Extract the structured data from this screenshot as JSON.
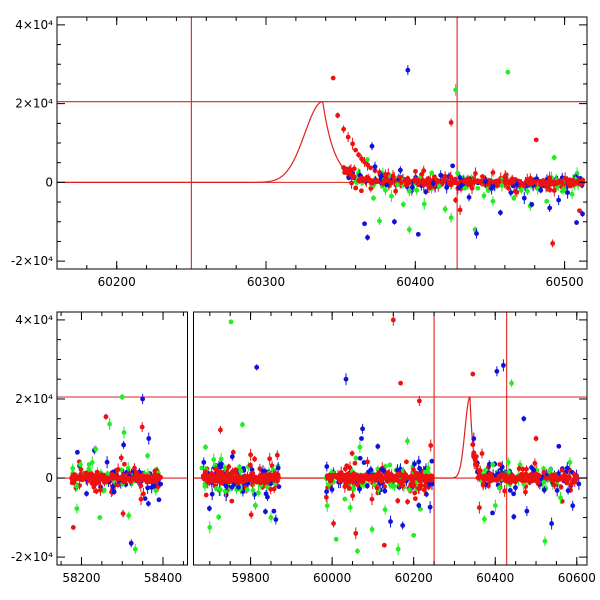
{
  "colors": {
    "red": "#ee1111",
    "green": "#22ee22",
    "blue": "#1111dd",
    "frame": "#000000"
  },
  "chart_data": [
    {
      "type": "scatter",
      "grid": false,
      "xlim": [
        60160,
        60515
      ],
      "ylim": [
        -22000,
        42000
      ],
      "yticks": [
        {
          "value": -20000,
          "label": "-2×10⁴"
        },
        {
          "value": 0,
          "label": "0"
        },
        {
          "value": 20000,
          "label": "2×10⁴"
        },
        {
          "value": 40000,
          "label": "4×10⁴"
        }
      ],
      "xticks": [
        {
          "value": 60200,
          "label": "60200"
        },
        {
          "value": 60300,
          "label": "60300"
        },
        {
          "value": 60400,
          "label": "60400"
        },
        {
          "value": 60500,
          "label": "60500"
        }
      ],
      "vlines": [
        60250,
        60428
      ],
      "hlines": [
        0,
        20500
      ],
      "model_curve": {
        "peak_x": 60338,
        "peak_y": 20500,
        "rise_width": 17,
        "decay_tau": 8,
        "x_start": 60160,
        "x_end": 60515
      },
      "series": [
        {
          "color": "red",
          "points": [
            [
              60345,
              26500
            ],
            [
              60348,
              17000
            ],
            [
              60352,
              13500
            ],
            [
              60355,
              11500
            ],
            [
              60358,
              9800
            ],
            [
              60360,
              8200
            ],
            [
              60362,
              7000
            ],
            [
              60364,
              6000
            ],
            [
              60366,
              5200
            ],
            [
              60368,
              4500
            ],
            [
              60370,
              3700
            ],
            [
              60373,
              3000
            ],
            [
              60376,
              2500
            ],
            [
              60380,
              2000
            ],
            [
              60385,
              1600
            ],
            [
              60390,
              1300
            ],
            [
              60395,
              1000
            ],
            [
              60400,
              800
            ],
            [
              60405,
              600
            ],
            [
              60410,
              500
            ],
            [
              60415,
              400
            ],
            [
              60420,
              300
            ],
            [
              60424,
              15200
            ],
            [
              60430,
              -7000
            ],
            [
              60438,
              -1500
            ],
            [
              60445,
              1500
            ],
            [
              60455,
              -800
            ],
            [
              60462,
              200
            ],
            [
              60468,
              -2500
            ],
            [
              60475,
              700
            ],
            [
              60481,
              10800
            ],
            [
              60487,
              -400
            ],
            [
              60492,
              -15500
            ],
            [
              60498,
              -1200
            ],
            [
              60506,
              300
            ],
            [
              60510,
              -7200
            ],
            [
              60427,
              -4500
            ],
            [
              60452,
              2500
            ],
            [
              60470,
              -800
            ],
            [
              60490,
              1200
            ],
            [
              60503,
              -200
            ]
          ]
        },
        {
          "color": "green",
          "points": [
            [
              60368,
              5800
            ],
            [
              60372,
              -4000
            ],
            [
              60376,
              -9800
            ],
            [
              60380,
              -2000
            ],
            [
              60384,
              -3500
            ],
            [
              60388,
              -600
            ],
            [
              60392,
              -5600
            ],
            [
              60396,
              -12000
            ],
            [
              60401,
              -2000
            ],
            [
              60406,
              -5500
            ],
            [
              60411,
              2400
            ],
            [
              60416,
              -1000
            ],
            [
              60420,
              -6800
            ],
            [
              60424,
              -9000
            ],
            [
              60427,
              23500
            ],
            [
              60433,
              -1500
            ],
            [
              60440,
              -12000
            ],
            [
              60446,
              -3400
            ],
            [
              60452,
              -4800
            ],
            [
              60458,
              -800
            ],
            [
              60462,
              28000
            ],
            [
              60466,
              -4000
            ],
            [
              60471,
              -2000
            ],
            [
              60477,
              -6000
            ],
            [
              60482,
              -1600
            ],
            [
              60488,
              -4800
            ],
            [
              60493,
              6300
            ],
            [
              60499,
              -1800
            ],
            [
              60505,
              -3000
            ]
          ]
        },
        {
          "color": "blue",
          "points": [
            [
              60366,
              -10500
            ],
            [
              60368,
              -14000
            ],
            [
              60371,
              9200
            ],
            [
              60373,
              4000
            ],
            [
              60377,
              1500
            ],
            [
              60381,
              -700
            ],
            [
              60386,
              -10000
            ],
            [
              60390,
              3100
            ],
            [
              60395,
              28500
            ],
            [
              60398,
              -1200
            ],
            [
              60402,
              -13200
            ],
            [
              60407,
              -2400
            ],
            [
              60412,
              -200
            ],
            [
              60417,
              1800
            ],
            [
              60421,
              -1300
            ],
            [
              60425,
              4200
            ],
            [
              60431,
              -700
            ],
            [
              60436,
              -3800
            ],
            [
              60441,
              -13000
            ],
            [
              60447,
              200
            ],
            [
              60452,
              -1000
            ],
            [
              60457,
              -7700
            ],
            [
              60464,
              -2600
            ],
            [
              60468,
              -600
            ],
            [
              60473,
              -4000
            ],
            [
              60478,
              -5600
            ],
            [
              60484,
              -2000
            ],
            [
              60490,
              -6500
            ],
            [
              60496,
              -4500
            ],
            [
              60502,
              -2600
            ],
            [
              60508,
              -10200
            ],
            [
              60512,
              -8000
            ]
          ]
        }
      ]
    },
    {
      "type": "scatter",
      "grid": false,
      "axis_break_between": [
        58460,
        59660
      ],
      "segments": [
        {
          "xlim": [
            58140,
            58460
          ]
        },
        {
          "xlim": [
            59660,
            60625
          ]
        }
      ],
      "ylim": [
        -22000,
        42000
      ],
      "yticks": [
        {
          "value": -20000,
          "label": "-2×10⁴"
        },
        {
          "value": 0,
          "label": "0"
        },
        {
          "value": 20000,
          "label": "2×10⁴"
        },
        {
          "value": 40000,
          "label": "4×10⁴"
        }
      ],
      "xticks": [
        {
          "value": 58200,
          "label": "58200"
        },
        {
          "value": 58400,
          "label": "58400"
        },
        {
          "value": 59800,
          "label": "59800"
        },
        {
          "value": 60000,
          "label": "60000"
        },
        {
          "value": 60200,
          "label": "60200"
        },
        {
          "value": 60400,
          "label": "60400"
        },
        {
          "value": 60600,
          "label": "60600"
        }
      ],
      "vlines": [
        60250,
        60428
      ],
      "hlines": [
        0,
        20500
      ],
      "model_curve": {
        "peak_x": 60338,
        "peak_y": 20500,
        "rise_width": 17,
        "decay_tau": 8,
        "x_start": 59660,
        "x_end": 60625
      },
      "clusters": [
        {
          "x_range": [
            58175,
            58395
          ],
          "count": 140
        },
        {
          "x_range": [
            59680,
            59870
          ],
          "count": 170
        },
        {
          "x_range": [
            59985,
            60245
          ],
          "count": 210
        },
        {
          "x_range": [
            60345,
            60600
          ],
          "count": 150
        }
      ],
      "series": [
        {
          "color": "red",
          "points": [
            [
              58180,
              -12500
            ],
            [
              58260,
              15500
            ],
            [
              58302,
              -9000
            ],
            [
              58330,
              2500
            ],
            [
              58352,
              -4000
            ],
            [
              59748,
              -1000
            ],
            [
              59810,
              4800
            ],
            [
              60110,
              -2500
            ],
            [
              60140,
              1000
            ],
            [
              60150,
              40000
            ],
            [
              60168,
              24000
            ],
            [
              60185,
              -6000
            ],
            [
              60200,
              -2000
            ],
            [
              60214,
              19500
            ],
            [
              60226,
              -3000
            ],
            [
              60345,
              26300
            ],
            [
              60500,
              10000
            ],
            [
              60545,
              -1800
            ],
            [
              60595,
              -1000
            ],
            [
              60058,
              -14000
            ],
            [
              60128,
              -17000
            ]
          ]
        },
        {
          "color": "green",
          "points": [
            [
              58245,
              -10000
            ],
            [
              58300,
              20500
            ],
            [
              58316,
              -9500
            ],
            [
              58332,
              -18000
            ],
            [
              59700,
              -12500
            ],
            [
              59752,
              39500
            ],
            [
              59792,
              -3000
            ],
            [
              59812,
              -7000
            ],
            [
              59850,
              -10000
            ],
            [
              59988,
              -7000
            ],
            [
              60010,
              -15500
            ],
            [
              60062,
              -18500
            ],
            [
              60098,
              -13000
            ],
            [
              60130,
              -8000
            ],
            [
              60162,
              -18000
            ],
            [
              60200,
              -14500
            ],
            [
              60410,
              -2500
            ],
            [
              60440,
              24000
            ],
            [
              60522,
              -16000
            ],
            [
              60560,
              -5000
            ]
          ]
        },
        {
          "color": "blue",
          "points": [
            [
              58190,
              6500
            ],
            [
              58280,
              -3500
            ],
            [
              58322,
              -16500
            ],
            [
              58350,
              20000
            ],
            [
              58365,
              10000
            ],
            [
              58390,
              -5500
            ],
            [
              59815,
              28000
            ],
            [
              59838,
              -4000
            ],
            [
              59862,
              -10500
            ],
            [
              60034,
              25000
            ],
            [
              60072,
              10000
            ],
            [
              60112,
              8000
            ],
            [
              60173,
              -12000
            ],
            [
              60404,
              27000
            ],
            [
              60420,
              28500
            ],
            [
              60445,
              -4000
            ],
            [
              60470,
              15000
            ],
            [
              60520,
              -3000
            ],
            [
              60590,
              -7000
            ],
            [
              60605,
              -1500
            ]
          ]
        }
      ]
    }
  ]
}
